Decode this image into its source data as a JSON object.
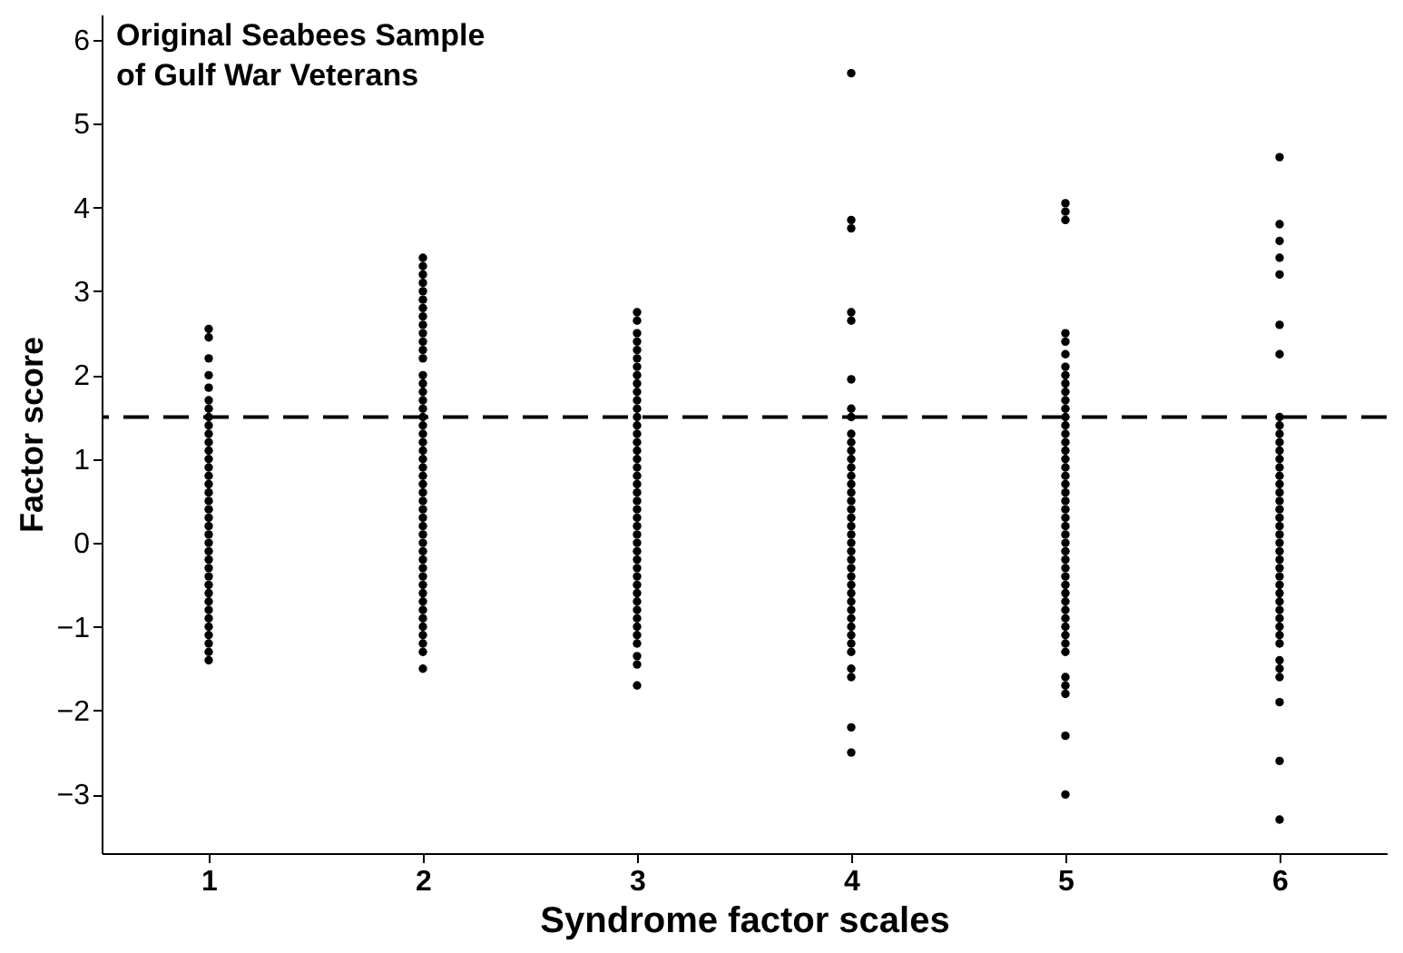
{
  "chart_data": {
    "type": "scatter",
    "categories": [
      "1",
      "2",
      "3",
      "4",
      "5",
      "6"
    ],
    "xlabel": "Syndrome factor scales",
    "ylabel": "Factor score",
    "annotations": [
      "Original Seabees Sample\nof Gulf War Veterans"
    ],
    "ylim": [
      -3.7,
      6.3
    ],
    "yticks": [
      -3,
      -2,
      -1,
      0,
      1,
      2,
      3,
      4,
      5,
      6
    ],
    "grid": false,
    "marker": "circle",
    "ref_lines": [
      {
        "axis": "y",
        "value": 1.5,
        "label": null,
        "color": "#000000",
        "line_style": "dashed"
      }
    ],
    "series": [
      {
        "color": "#000000",
        "x": [
          "1",
          "1",
          "1",
          "1",
          "1",
          "1",
          "1",
          "1",
          "1",
          "1",
          "1",
          "1",
          "1",
          "1",
          "1",
          "1",
          "1",
          "1",
          "1",
          "1",
          "1",
          "1",
          "1",
          "1",
          "1",
          "1",
          "1",
          "1",
          "1",
          "1",
          "1",
          "1",
          "1",
          "1",
          "1",
          "1",
          "1"
        ],
        "values": [
          2.55,
          2.45,
          2.2,
          2.0,
          1.85,
          1.7,
          1.6,
          1.5,
          1.4,
          1.3,
          1.2,
          1.1,
          1.0,
          0.9,
          0.8,
          0.7,
          0.6,
          0.5,
          0.4,
          0.3,
          0.2,
          0.1,
          0.0,
          -0.1,
          -0.2,
          -0.3,
          -0.4,
          -0.5,
          -0.6,
          -0.7,
          -0.8,
          -0.9,
          -1.0,
          -1.1,
          -1.2,
          -1.3,
          -1.4
        ]
      },
      {
        "color": "#000000",
        "x": [
          "2",
          "2",
          "2",
          "2",
          "2",
          "2",
          "2",
          "2",
          "2",
          "2",
          "2",
          "2",
          "2",
          "2",
          "2",
          "2",
          "2",
          "2",
          "2",
          "2",
          "2",
          "2",
          "2",
          "2",
          "2",
          "2",
          "2",
          "2",
          "2",
          "2",
          "2",
          "2",
          "2",
          "2",
          "2",
          "2",
          "2",
          "2",
          "2",
          "2",
          "2",
          "2",
          "2",
          "2",
          "2",
          "2",
          "2",
          "2"
        ],
        "values": [
          3.4,
          3.3,
          3.2,
          3.1,
          3.0,
          2.9,
          2.8,
          2.7,
          2.6,
          2.5,
          2.4,
          2.3,
          2.2,
          2.0,
          1.9,
          1.8,
          1.7,
          1.6,
          1.5,
          1.4,
          1.3,
          1.2,
          1.1,
          1.0,
          0.9,
          0.8,
          0.7,
          0.6,
          0.5,
          0.4,
          0.3,
          0.2,
          0.1,
          0.0,
          -0.1,
          -0.2,
          -0.3,
          -0.4,
          -0.5,
          -0.6,
          -0.7,
          -0.8,
          -0.9,
          -1.0,
          -1.1,
          -1.2,
          -1.3,
          -1.5
        ]
      },
      {
        "color": "#000000",
        "x": [
          "3",
          "3",
          "3",
          "3",
          "3",
          "3",
          "3",
          "3",
          "3",
          "3",
          "3",
          "3",
          "3",
          "3",
          "3",
          "3",
          "3",
          "3",
          "3",
          "3",
          "3",
          "3",
          "3",
          "3",
          "3",
          "3",
          "3",
          "3",
          "3",
          "3",
          "3",
          "3",
          "3",
          "3",
          "3",
          "3",
          "3",
          "3",
          "3",
          "3",
          "3",
          "3",
          "3"
        ],
        "values": [
          2.75,
          2.65,
          2.5,
          2.4,
          2.3,
          2.2,
          2.1,
          2.0,
          1.9,
          1.8,
          1.7,
          1.6,
          1.5,
          1.4,
          1.3,
          1.2,
          1.1,
          1.0,
          0.9,
          0.8,
          0.7,
          0.6,
          0.5,
          0.4,
          0.3,
          0.2,
          0.1,
          0.0,
          -0.1,
          -0.2,
          -0.3,
          -0.4,
          -0.5,
          -0.6,
          -0.7,
          -0.8,
          -0.9,
          -1.0,
          -1.1,
          -1.2,
          -1.35,
          -1.45,
          -1.7
        ]
      },
      {
        "color": "#000000",
        "x": [
          "4",
          "4",
          "4",
          "4",
          "4",
          "4",
          "4",
          "4",
          "4",
          "4",
          "4",
          "4",
          "4",
          "4",
          "4",
          "4",
          "4",
          "4",
          "4",
          "4",
          "4",
          "4",
          "4",
          "4",
          "4",
          "4",
          "4",
          "4",
          "4",
          "4",
          "4",
          "4",
          "4",
          "4",
          "4",
          "4",
          "4",
          "4",
          "4"
        ],
        "values": [
          5.6,
          3.85,
          3.75,
          2.75,
          2.65,
          1.95,
          1.6,
          1.5,
          1.3,
          1.2,
          1.1,
          1.0,
          0.9,
          0.8,
          0.7,
          0.6,
          0.5,
          0.4,
          0.3,
          0.2,
          0.1,
          0.0,
          -0.1,
          -0.2,
          -0.3,
          -0.4,
          -0.5,
          -0.6,
          -0.7,
          -0.8,
          -0.9,
          -1.0,
          -1.1,
          -1.2,
          -1.3,
          -1.5,
          -1.6,
          -2.2,
          -2.5
        ]
      },
      {
        "color": "#000000",
        "x": [
          "5",
          "5",
          "5",
          "5",
          "5",
          "5",
          "5",
          "5",
          "5",
          "5",
          "5",
          "5",
          "5",
          "5",
          "5",
          "5",
          "5",
          "5",
          "5",
          "5",
          "5",
          "5",
          "5",
          "5",
          "5",
          "5",
          "5",
          "5",
          "5",
          "5",
          "5",
          "5",
          "5",
          "5",
          "5",
          "5",
          "5",
          "5",
          "5",
          "5",
          "5",
          "5",
          "5",
          "5",
          "5",
          "5"
        ],
        "values": [
          4.05,
          3.95,
          3.85,
          2.5,
          2.4,
          2.25,
          2.1,
          2.0,
          1.9,
          1.8,
          1.7,
          1.6,
          1.5,
          1.4,
          1.3,
          1.2,
          1.1,
          1.0,
          0.9,
          0.8,
          0.7,
          0.6,
          0.5,
          0.4,
          0.3,
          0.2,
          0.1,
          0.0,
          -0.1,
          -0.2,
          -0.3,
          -0.4,
          -0.5,
          -0.6,
          -0.7,
          -0.8,
          -0.9,
          -1.0,
          -1.1,
          -1.2,
          -1.3,
          -1.6,
          -1.7,
          -1.8,
          -2.3,
          -3.0
        ]
      },
      {
        "color": "#000000",
        "x": [
          "6",
          "6",
          "6",
          "6",
          "6",
          "6",
          "6",
          "6",
          "6",
          "6",
          "6",
          "6",
          "6",
          "6",
          "6",
          "6",
          "6",
          "6",
          "6",
          "6",
          "6",
          "6",
          "6",
          "6",
          "6",
          "6",
          "6",
          "6",
          "6",
          "6",
          "6",
          "6",
          "6",
          "6",
          "6",
          "6",
          "6",
          "6",
          "6",
          "6",
          "6"
        ],
        "values": [
          4.6,
          3.8,
          3.6,
          3.4,
          3.2,
          2.6,
          2.25,
          1.5,
          1.4,
          1.3,
          1.2,
          1.1,
          1.0,
          0.9,
          0.8,
          0.7,
          0.6,
          0.5,
          0.4,
          0.3,
          0.2,
          0.1,
          0.0,
          -0.1,
          -0.2,
          -0.3,
          -0.4,
          -0.5,
          -0.6,
          -0.7,
          -0.8,
          -0.9,
          -1.0,
          -1.1,
          -1.2,
          -1.4,
          -1.5,
          -1.6,
          -1.9,
          -2.6,
          -3.3
        ]
      }
    ]
  }
}
